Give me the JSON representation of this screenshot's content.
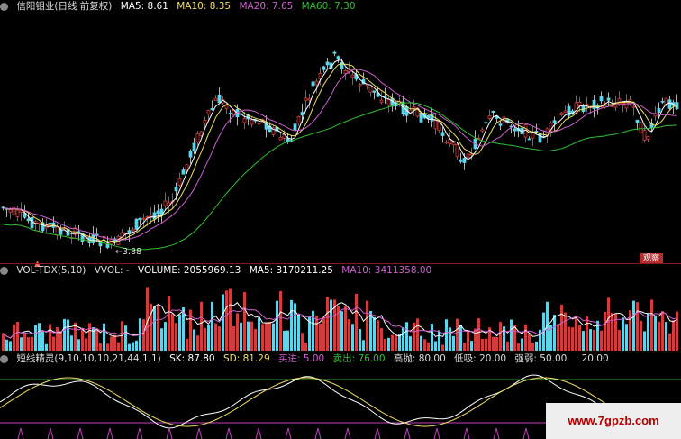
{
  "price_header": {
    "title": "信阳钼业(日线 前复权)",
    "ma5": "MA5: 8.61",
    "ma10": "MA10: 8.35",
    "ma20": "MA20: 7.65",
    "ma60": "MA60: 7.30"
  },
  "price_panel": {
    "low_label": "←3.88",
    "badge": "观察",
    "marker": "▲"
  },
  "volume_header": {
    "name": "VOL-TDX(5,10)",
    "vvol": "VVOL: -",
    "volume": "VOLUME: 2055969.13",
    "ma5": "MA5: 3170211.25",
    "ma10": "MA10: 3411358.00"
  },
  "indicator_header": {
    "name": "短线精灵(9,10,10,10,21,44,1,1)",
    "sk": "SK: 87.80",
    "sd": "SD: 81.29",
    "buy": "买进: 5.00",
    "sell": "卖出: 76.00",
    "high": "高抛: 80.00",
    "low": "低吸: 20.00",
    "strength": "强弱: 50.00",
    "strength2": ": 20.00"
  },
  "watermark": "www.7gpzb.com",
  "colors": {
    "up": "#d23c3c",
    "down": "#5fd3e8",
    "ma5": "#ffffff",
    "ma10": "#f0e060",
    "ma20": "#d060d0",
    "ma60": "#30c030",
    "line_sk": "#ffffff",
    "line_sd": "#f0e060"
  }
}
